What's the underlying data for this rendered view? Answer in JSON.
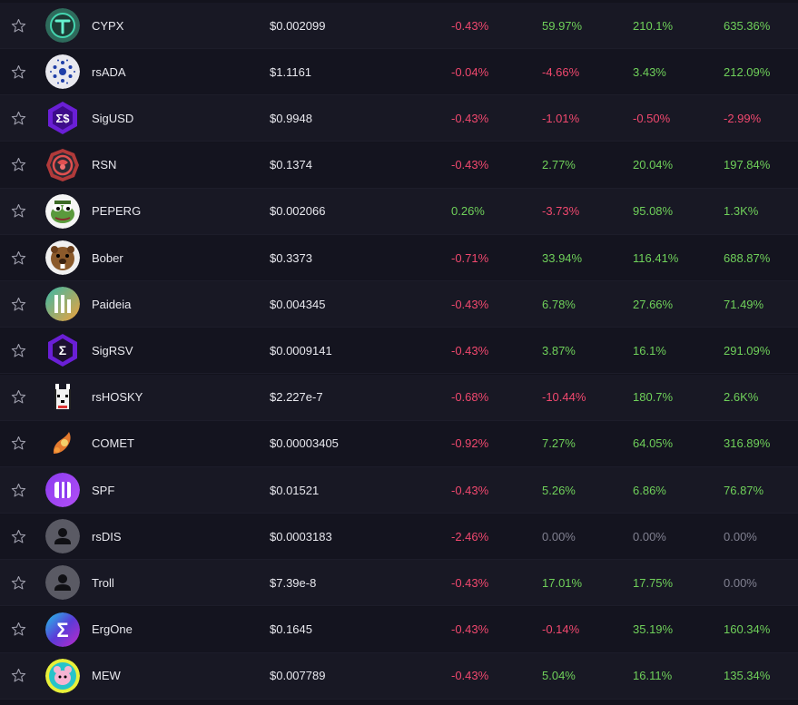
{
  "colors": {
    "positive": "#6fd05a",
    "negative": "#f0486e",
    "neutral": "#808090",
    "background": "#13131d"
  },
  "rows": [
    {
      "name": "CYPX",
      "price": "$0.002099",
      "c1": "-0.43%",
      "c2": "59.97%",
      "c3": "210.1%",
      "c4": "635.36%",
      "icon": "cypx-logo-icon"
    },
    {
      "name": "rsADA",
      "price": "$1.1161",
      "c1": "-0.04%",
      "c2": "-4.66%",
      "c3": "3.43%",
      "c4": "212.09%",
      "icon": "cardano-logo-icon"
    },
    {
      "name": "SigUSD",
      "price": "$0.9948",
      "c1": "-0.43%",
      "c2": "-1.01%",
      "c3": "-0.50%",
      "c4": "-2.99%",
      "icon": "sigusd-logo-icon"
    },
    {
      "name": "RSN",
      "price": "$0.1374",
      "c1": "-0.43%",
      "c2": "2.77%",
      "c3": "20.04%",
      "c4": "197.84%",
      "icon": "rsn-logo-icon"
    },
    {
      "name": "PEPERG",
      "price": "$0.002066",
      "c1": "0.26%",
      "c2": "-3.73%",
      "c3": "95.08%",
      "c4": "1.3K%",
      "icon": "pepe-frog-logo-icon"
    },
    {
      "name": "Bober",
      "price": "$0.3373",
      "c1": "-0.71%",
      "c2": "33.94%",
      "c3": "116.41%",
      "c4": "688.87%",
      "icon": "beaver-logo-icon"
    },
    {
      "name": "Paideia",
      "price": "$0.004345",
      "c1": "-0.43%",
      "c2": "6.78%",
      "c3": "27.66%",
      "c4": "71.49%",
      "icon": "paideia-logo-icon"
    },
    {
      "name": "SigRSV",
      "price": "$0.0009141",
      "c1": "-0.43%",
      "c2": "3.87%",
      "c3": "16.1%",
      "c4": "291.09%",
      "icon": "sigrsv-logo-icon"
    },
    {
      "name": "rsHOSKY",
      "price": "$2.227e-7",
      "c1": "-0.68%",
      "c2": "-10.44%",
      "c3": "180.7%",
      "c4": "2.6K%",
      "icon": "hosky-dog-logo-icon"
    },
    {
      "name": "COMET",
      "price": "$0.00003405",
      "c1": "-0.92%",
      "c2": "7.27%",
      "c3": "64.05%",
      "c4": "316.89%",
      "icon": "comet-logo-icon"
    },
    {
      "name": "SPF",
      "price": "$0.01521",
      "c1": "-0.43%",
      "c2": "5.26%",
      "c3": "6.86%",
      "c4": "76.87%",
      "icon": "spf-logo-icon"
    },
    {
      "name": "rsDIS",
      "price": "$0.0003183",
      "c1": "-2.46%",
      "c2": "0.00%",
      "c3": "0.00%",
      "c4": "0.00%",
      "icon": "default-user-logo-icon"
    },
    {
      "name": "Troll",
      "price": "$7.39e-8",
      "c1": "-0.43%",
      "c2": "17.01%",
      "c3": "17.75%",
      "c4": "0.00%",
      "icon": "default-user-logo-icon"
    },
    {
      "name": "ErgOne",
      "price": "$0.1645",
      "c1": "-0.43%",
      "c2": "-0.14%",
      "c3": "35.19%",
      "c4": "160.34%",
      "icon": "ergone-sigma-logo-icon"
    },
    {
      "name": "MEW",
      "price": "$0.007789",
      "c1": "-0.43%",
      "c2": "5.04%",
      "c3": "16.11%",
      "c4": "135.34%",
      "icon": "mew-cat-logo-icon"
    }
  ]
}
